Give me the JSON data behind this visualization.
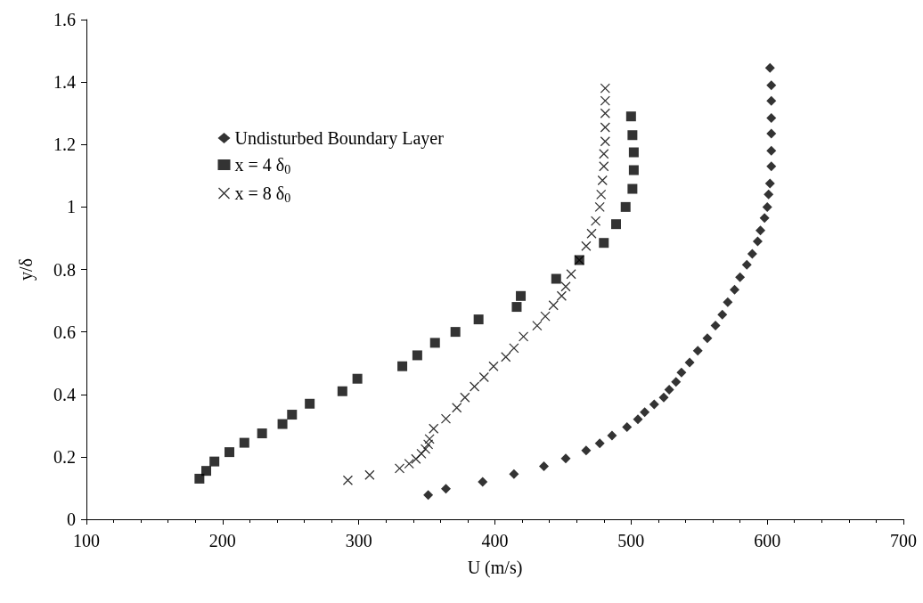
{
  "chart_data": {
    "type": "scatter",
    "xlabel": "U (m/s)",
    "ylabel": "y/δ",
    "xlim": [
      100,
      700
    ],
    "xticks": [
      100,
      200,
      300,
      400,
      500,
      600,
      700
    ],
    "ylim": [
      0,
      1.6
    ],
    "yticks": [
      0,
      0.2,
      0.4,
      0.6,
      0.8,
      1,
      1.2,
      1.4,
      1.6
    ],
    "grid": false,
    "legend": "top left",
    "series": [
      {
        "name": "Undisturbed Boundary Layer",
        "color": "#000000",
        "marker": "diamond",
        "x": [
          351,
          364,
          391,
          414,
          436,
          452,
          467,
          477,
          486,
          497,
          505,
          510,
          517,
          524,
          528,
          533,
          537,
          543,
          549,
          556,
          562,
          567,
          571,
          576,
          580,
          585,
          589,
          593,
          595,
          598,
          600,
          601,
          602,
          603,
          603,
          603,
          603,
          603,
          603,
          602
        ],
        "values": [
          0.078,
          0.098,
          0.12,
          0.145,
          0.17,
          0.195,
          0.22,
          0.243,
          0.268,
          0.295,
          0.32,
          0.343,
          0.368,
          0.39,
          0.415,
          0.44,
          0.47,
          0.502,
          0.54,
          0.58,
          0.62,
          0.655,
          0.695,
          0.735,
          0.775,
          0.815,
          0.85,
          0.89,
          0.925,
          0.965,
          1.0,
          1.04,
          1.075,
          1.13,
          1.18,
          1.235,
          1.285,
          1.34,
          1.39,
          1.445
        ]
      },
      {
        "name": "x = 4 δ$_{0}$",
        "color": "#000000",
        "marker": "square",
        "x": [
          183,
          188,
          194,
          205,
          216,
          229,
          244,
          251,
          264,
          288,
          299,
          332,
          343,
          356,
          371,
          388,
          416,
          419,
          445,
          462,
          480,
          489,
          496,
          501,
          502,
          502,
          501,
          500
        ],
        "values": [
          0.13,
          0.155,
          0.185,
          0.215,
          0.245,
          0.275,
          0.305,
          0.335,
          0.37,
          0.41,
          0.45,
          0.49,
          0.525,
          0.565,
          0.6,
          0.64,
          0.68,
          0.715,
          0.77,
          0.83,
          0.885,
          0.945,
          1.0,
          1.058,
          1.118,
          1.175,
          1.23,
          1.29
        ]
      },
      {
        "name": "x = 8 δ$_{0}$",
        "color": "#000000",
        "marker": "cross",
        "x": [
          292,
          308,
          330,
          337,
          342,
          346,
          349,
          351,
          352,
          355,
          364,
          372,
          378,
          385,
          392,
          399,
          408,
          414,
          421,
          431,
          437,
          443,
          449,
          452,
          456,
          462,
          467,
          471,
          474,
          477,
          478,
          479,
          480,
          480,
          481,
          481,
          481,
          481,
          481
        ],
        "values": [
          0.125,
          0.142,
          0.163,
          0.178,
          0.193,
          0.21,
          0.225,
          0.24,
          0.257,
          0.29,
          0.322,
          0.357,
          0.39,
          0.425,
          0.455,
          0.49,
          0.52,
          0.548,
          0.585,
          0.62,
          0.65,
          0.685,
          0.715,
          0.745,
          0.785,
          0.83,
          0.875,
          0.915,
          0.955,
          1.0,
          1.04,
          1.085,
          1.13,
          1.17,
          1.21,
          1.255,
          1.3,
          1.34,
          1.38
        ]
      }
    ]
  }
}
